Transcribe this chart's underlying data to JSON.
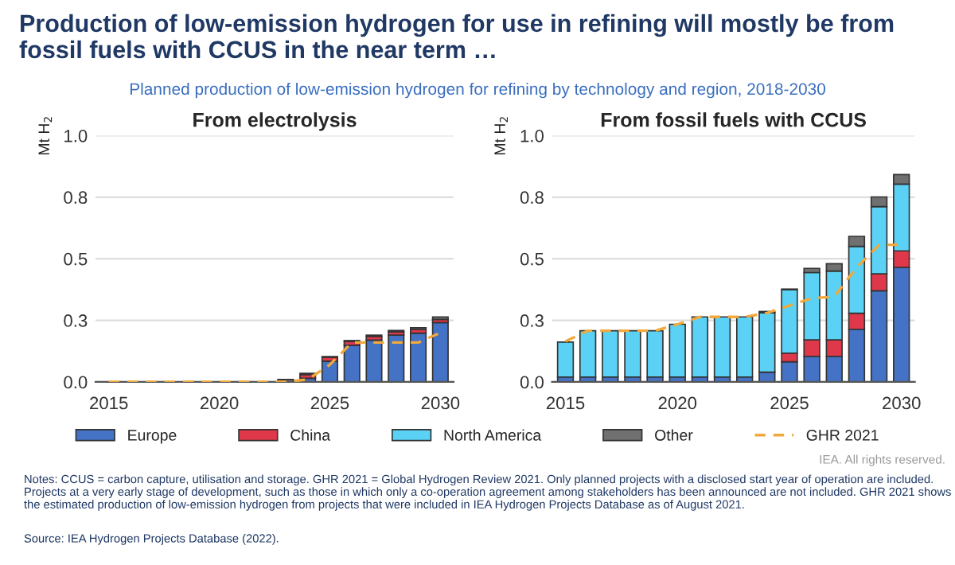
{
  "chart_data": [
    {
      "type": "bar",
      "title": "Production of low-emission hydrogen for use in refining will mostly be from fossil fuels with CCUS in the near term …",
      "subtitle": "Planned production of low-emission hydrogen for refining by technology and region, 2018-2030",
      "legend_title": "From electrolysis",
      "ylabel": "Mt H$_{2}$",
      "stacked": true,
      "grid": "y",
      "x": [
        2015,
        2016,
        2017,
        2018,
        2019,
        2020,
        2021,
        2022,
        2023,
        2024,
        2025,
        2026,
        2027,
        2028,
        2029,
        2030
      ],
      "xlim": [
        2014.4,
        2030.6
      ],
      "xticks": [
        2015,
        2020,
        2025,
        2030
      ],
      "ylim": [
        0,
        1
      ],
      "yticks": [
        {
          "value": 0,
          "label": "0.0"
        },
        {
          "value": 0.25,
          "label": "0.3"
        },
        0.5,
        {
          "value": 0.75,
          "label": "0.8"
        },
        {
          "value": 1,
          "label": "1.0"
        }
      ],
      "series": [
        {
          "color": "#4472c4",
          "values": [
            0,
            0,
            0,
            0,
            0,
            0,
            0,
            0,
            null,
            0.015,
            0.084,
            0.149,
            0.17,
            0.19,
            0.198,
            0.241
          ]
        },
        {
          "color": "#e0384b",
          "values": [
            0,
            0,
            0,
            0,
            0,
            0,
            0,
            0,
            0,
            0.015,
            0.016,
            0.015,
            0.015,
            0.014,
            0.015,
            0.013
          ]
        },
        {
          "color": "#5bd2f5",
          "values": [
            0,
            0,
            0,
            0,
            0,
            0,
            0,
            0,
            0,
            0,
            0,
            0,
            0,
            0,
            0,
            0
          ]
        },
        {
          "color": "#707070",
          "values": [
            0,
            0,
            0,
            0,
            0,
            0,
            0,
            null,
            0.01,
            0.005,
            0.003,
            0.004,
            0.005,
            0.005,
            0.007,
            0.01
          ]
        },
        {
          "type": "line",
          "color": "#f2a93b",
          "line_style": "dashed",
          "values": [
            0,
            0,
            0,
            0,
            0,
            0,
            0,
            0,
            0,
            0.01,
            0.07,
            0.16,
            0.16,
            0.16,
            0.16,
            0.2
          ]
        }
      ]
    },
    {
      "type": "bar",
      "legend_title": "From fossil fuels with CCUS",
      "ylabel": "Mt H$_{2}$",
      "stacked": true,
      "grid": "y",
      "legend": "bottom",
      "x": [
        2015,
        2016,
        2017,
        2018,
        2019,
        2020,
        2021,
        2022,
        2023,
        2024,
        2025,
        2026,
        2027,
        2028,
        2029,
        2030
      ],
      "xlim": [
        2014.4,
        2030.6
      ],
      "xticks": [
        2015,
        2020,
        2025,
        2030
      ],
      "ylim": [
        0,
        1
      ],
      "yticks": [
        {
          "value": 0,
          "label": "0.0"
        },
        {
          "value": 0.25,
          "label": "0.3"
        },
        0.5,
        {
          "value": 0.75,
          "label": "0.8"
        },
        {
          "value": 1,
          "label": "1.0"
        }
      ],
      "series": [
        {
          "name": "Europe",
          "color": "#4472c4",
          "values": [
            0.02,
            0.02,
            0.02,
            0.02,
            0.02,
            0.02,
            0.02,
            0.02,
            0.02,
            0.04,
            0.082,
            0.104,
            0.104,
            0.214,
            0.37,
            0.465
          ]
        },
        {
          "name": "China",
          "color": "#e0384b",
          "values": [
            0,
            0,
            0,
            0,
            0,
            0,
            0,
            0,
            0,
            0,
            0.035,
            0.067,
            0.067,
            0.065,
            0.069,
            0.067
          ]
        },
        {
          "name": "North America",
          "color": "#5bd2f5",
          "values": [
            0.142,
            0.188,
            0.188,
            0.188,
            0.188,
            0.214,
            0.244,
            0.244,
            0.244,
            0.241,
            0.257,
            0.273,
            0.279,
            0.271,
            0.273,
            0.271
          ]
        },
        {
          "name": "Other",
          "color": "#707070",
          "values": [
            0,
            0,
            0,
            0,
            0,
            0,
            0,
            0,
            0,
            0.005,
            0.003,
            0.017,
            0.03,
            0.041,
            0.039,
            0.039
          ]
        },
        {
          "name": "GHR 2021",
          "type": "line",
          "color": "#f2a93b",
          "line_style": "dashed",
          "values": [
            0.165,
            0.208,
            0.208,
            0.208,
            0.208,
            0.234,
            0.264,
            0.264,
            0.264,
            0.28,
            0.31,
            0.34,
            0.346,
            0.465,
            0.556,
            0.558
          ]
        }
      ],
      "annotations": [
        "IEA. All rights reserved.",
        "Notes: CCUS = carbon capture, utilisation and storage. GHR 2021 = Global Hydrogen Review 2021. Only planned projects with a disclosed start year of operation are included. Projects at a very early stage of development, such as those in which only a co-operation agreement among stakeholders has been announced are not included. GHR 2021 shows the estimated production of low-emission hydrogen from projects that were included in IEA Hydrogen Projects Database as of August 2021.",
        "Source: IEA Hydrogen Projects Database (2022)."
      ]
    }
  ]
}
